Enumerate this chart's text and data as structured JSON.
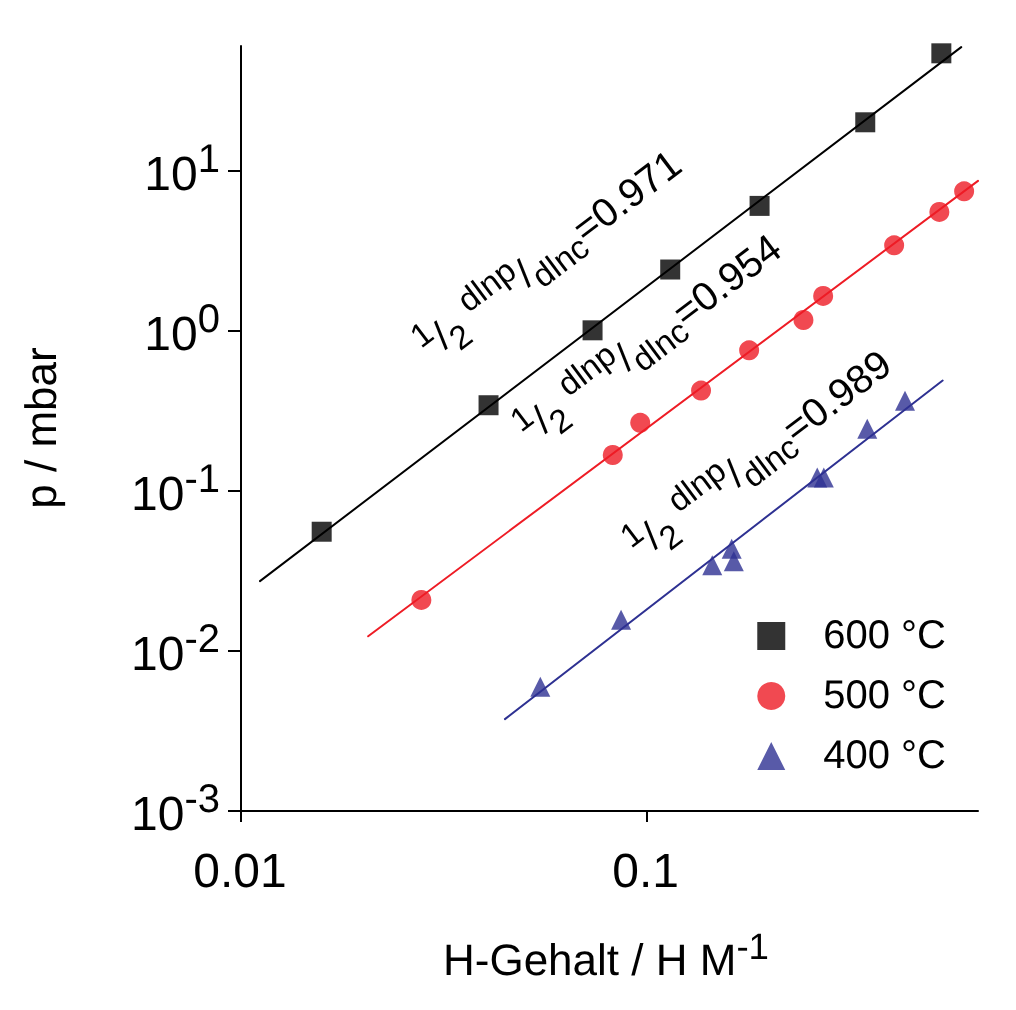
{
  "chart_data": {
    "type": "scatter",
    "xlabel": "H-Gehalt / H M$^{-1}$",
    "ylabel": "p / mbar",
    "log": "xy",
    "xlim": [
      0.01,
      0.66
    ],
    "xticks": [
      0.01,
      0.1
    ],
    "ylim": [
      0.001,
      60
    ],
    "yticks": [
      {
        "value": 0.001,
        "label": "10$^{-3}$"
      },
      {
        "value": 0.01,
        "label": "10$^{-2}$"
      },
      {
        "value": 0.1,
        "label": "10$^{-1}$"
      },
      {
        "value": 1,
        "label": "10$^{0}$"
      },
      {
        "value": 10,
        "label": "10$^{1}$"
      }
    ],
    "grid": false,
    "legend": "bottom right",
    "series": [
      {
        "name": "600 °C",
        "marker": "square",
        "color": "#000000",
        "x": [
          0.0159,
          0.041,
          0.074,
          0.115,
          0.191,
          0.348,
          0.536
        ],
        "values": [
          0.055,
          0.34,
          1.0,
          2.4,
          6.0,
          20,
          54
        ]
      },
      {
        "name": "500 °C",
        "marker": "circle",
        "color": "#ee1c25",
        "x": [
          0.028,
          0.083,
          0.097,
          0.137,
          0.18,
          0.245,
          0.274,
          0.41,
          0.53,
          0.61
        ],
        "values": [
          0.0206,
          0.166,
          0.264,
          0.42,
          0.75,
          1.16,
          1.64,
          3.4,
          5.5,
          7.4
        ]
      },
      {
        "name": "400 °C",
        "marker": "triangle",
        "color": "#2e3192",
        "x": [
          0.055,
          0.087,
          0.146,
          0.163,
          0.165,
          0.265,
          0.275,
          0.352,
          0.436
        ],
        "values": [
          0.0059,
          0.0155,
          0.034,
          0.043,
          0.036,
          0.12,
          0.12,
          0.242,
          0.363
        ]
      },
      {
        "type": "line",
        "marker": "none",
        "color": "#000000",
        "x": [
          0.0112,
          0.6
        ],
        "values": [
          0.027,
          59
        ]
      },
      {
        "type": "line",
        "marker": "none",
        "color": "#ee1c25",
        "x": [
          0.0207,
          0.66
        ],
        "values": [
          0.0122,
          8.6
        ]
      },
      {
        "type": "line",
        "marker": "none",
        "color": "#2e3192",
        "x": [
          0.045,
          0.54
        ],
        "values": [
          0.0037,
          0.485
        ]
      }
    ],
    "annotations": [
      "$^{1}$/$_{2}$ $^{dlnp}$/$_{dlnc}$=0.971",
      "$^{1}$/$_{2}$ $^{dlnp}$/$_{dlnc}$=0.954",
      "$^{1}$/$_{2}$ $^{dlnp}$/$_{dlnc}$=0.989"
    ]
  }
}
